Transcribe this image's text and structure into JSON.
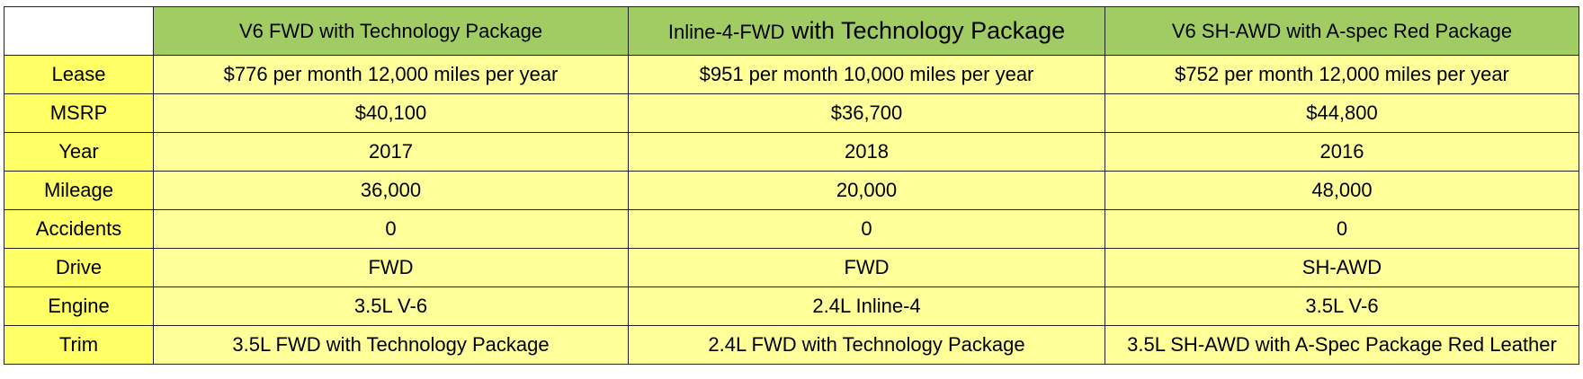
{
  "table": {
    "columns": [
      "V6 FWD with Technology Package",
      "Inline-4-FWD with Technology Package",
      "V6 SH-AWD with A-spec Red Package"
    ],
    "column_header_2_parts": [
      "Inline-4-FWD",
      " with Technology Package"
    ],
    "rows": [
      {
        "label": "Lease",
        "values": [
          "$776 per month 12,000 miles per year",
          "$951 per month 10,000 miles per year",
          "$752 per month 12,000 miles per year"
        ]
      },
      {
        "label": "MSRP",
        "values": [
          "$40,100",
          "$36,700",
          "$44,800"
        ]
      },
      {
        "label": "Year",
        "values": [
          "2017",
          "2018",
          "2016"
        ]
      },
      {
        "label": "Mileage",
        "values": [
          "36,000",
          "20,000",
          "48,000"
        ]
      },
      {
        "label": "Accidents",
        "values": [
          "0",
          "0",
          "0"
        ]
      },
      {
        "label": "Drive",
        "values": [
          "FWD",
          "FWD",
          "SH-AWD"
        ]
      },
      {
        "label": "Engine",
        "values": [
          "3.5L V-6",
          "2.4L Inline-4",
          "3.5L V-6"
        ]
      },
      {
        "label": "Trim",
        "values": [
          "3.5L FWD with Technology Package",
          "2.4L FWD with Technology Package",
          "3.5L SH-AWD with A-Spec Package Red Leather"
        ]
      }
    ]
  },
  "colors": {
    "header_fill": "#a1cc63",
    "row_label_fill": "#ffff66",
    "cell_fill": "#ffff99",
    "border": "#222222"
  }
}
